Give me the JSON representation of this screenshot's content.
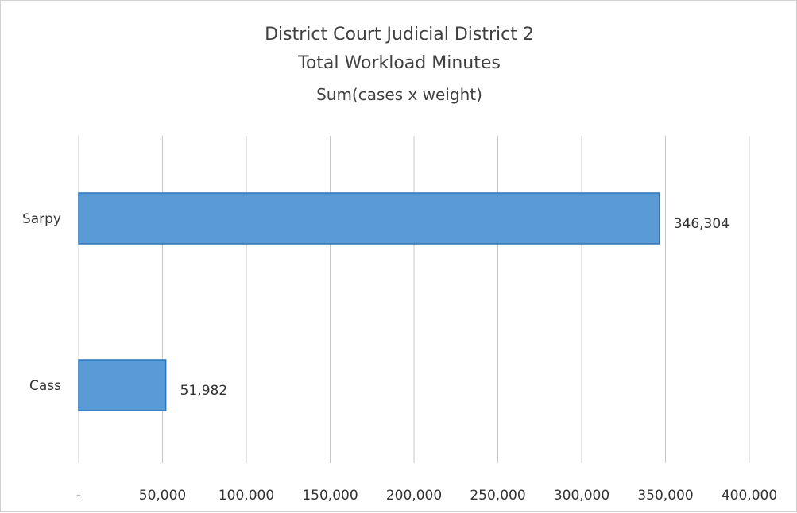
{
  "chart_data": {
    "type": "bar",
    "orientation": "horizontal",
    "title_lines": [
      "District Court Judicial District 2",
      "Total Workload Minutes",
      "Sum(cases x weight)"
    ],
    "categories": [
      "Sarpy",
      "Cass"
    ],
    "values": [
      346304,
      51982
    ],
    "value_labels": [
      "346,304",
      "51,982"
    ],
    "xlim": [
      0,
      400000
    ],
    "x_ticks": [
      0,
      50000,
      100000,
      150000,
      200000,
      250000,
      300000,
      350000,
      400000
    ],
    "x_tick_labels": [
      "-",
      "50,000",
      "100,000",
      "150,000",
      "200,000",
      "250,000",
      "300,000",
      "350,000",
      "400,000"
    ],
    "gridlines": "vertical",
    "legend": "none",
    "bar_color": "#5b9bd5",
    "bar_edge_color": "#2e75b6",
    "grid_color": "#c8c8c8"
  }
}
